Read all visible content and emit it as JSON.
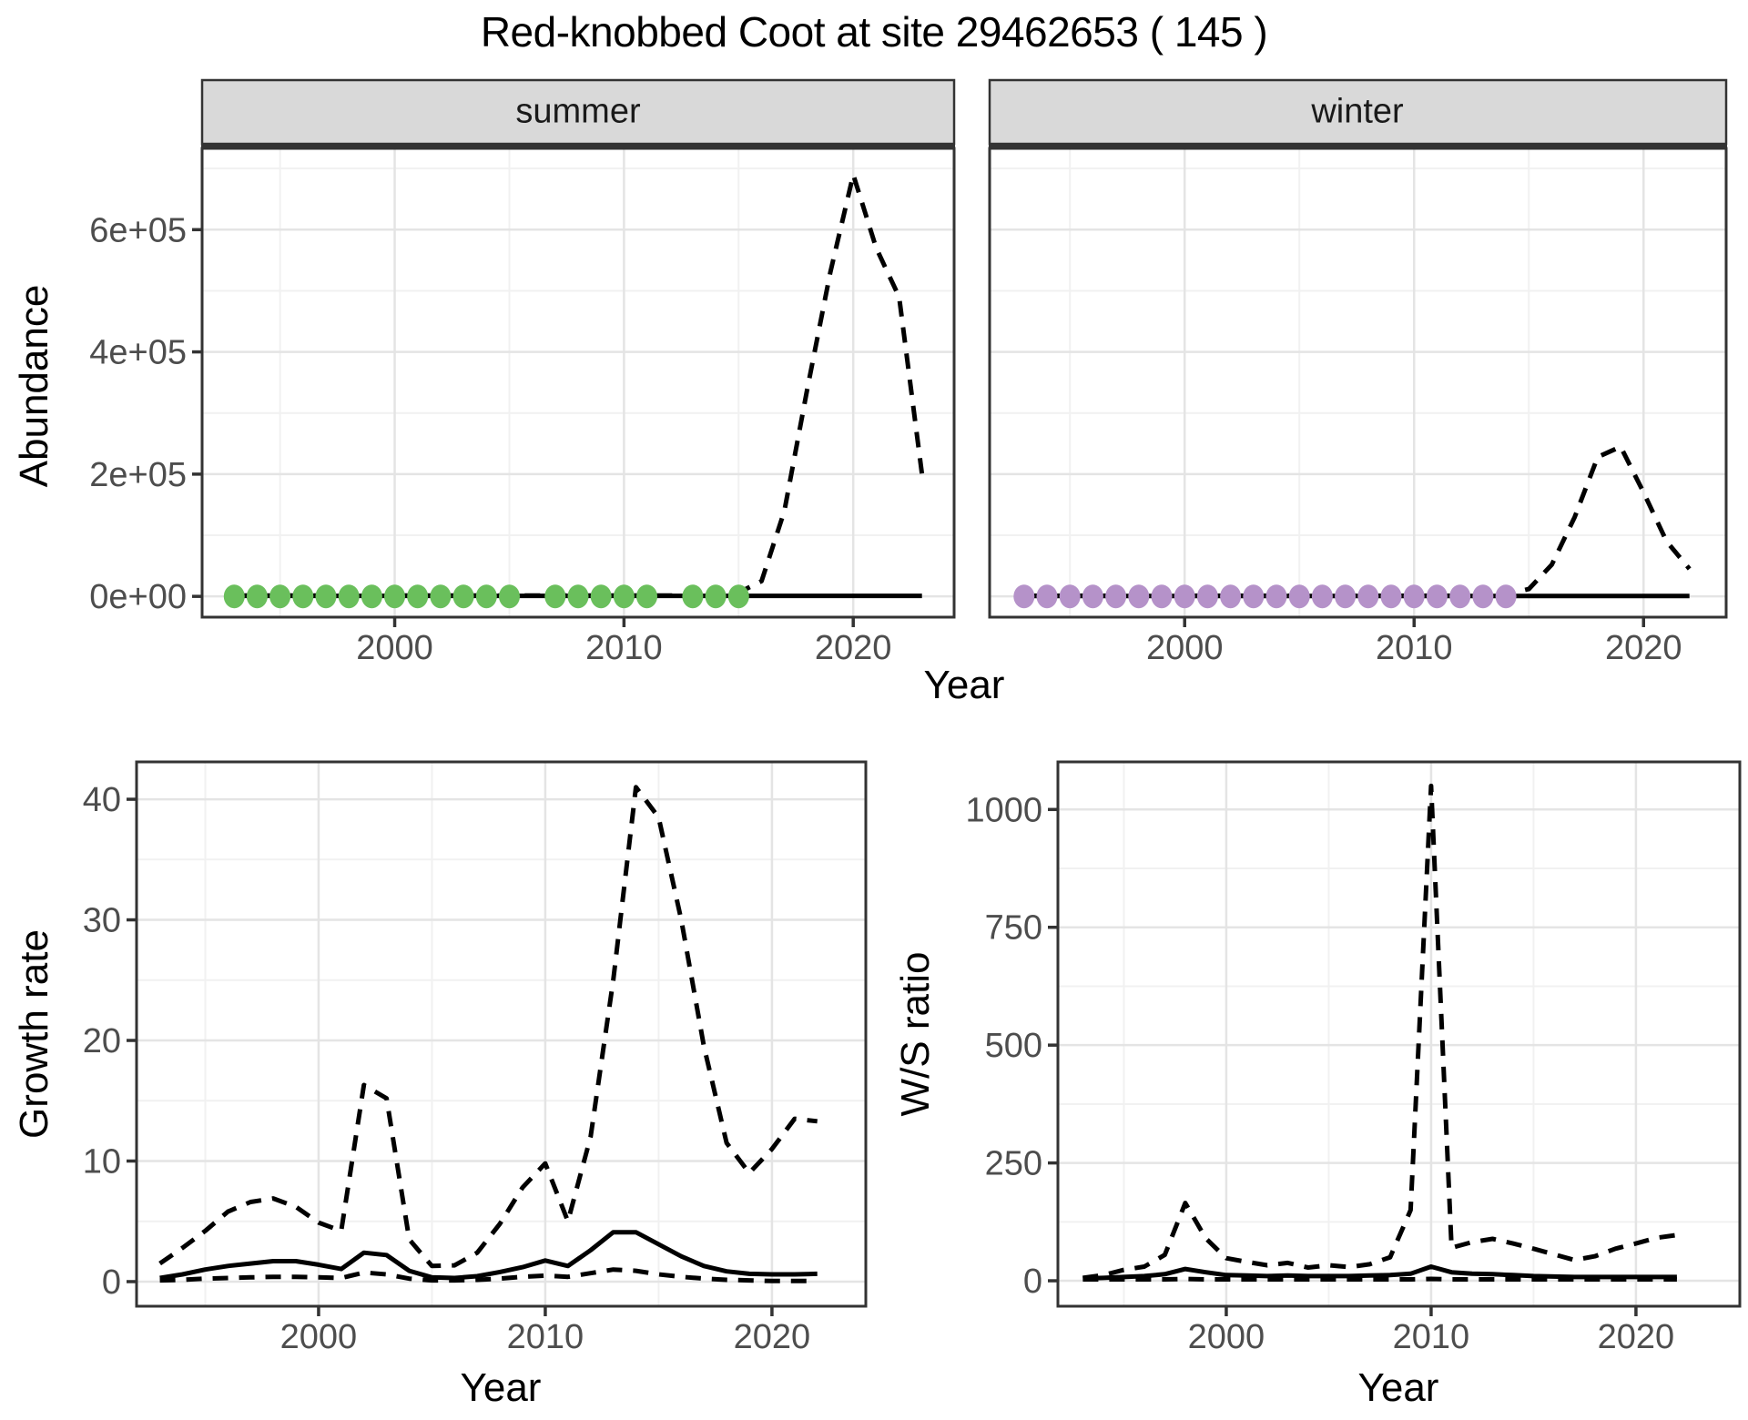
{
  "title": "Red-knobbed Coot at site 29462653 ( 145 )",
  "axes": {
    "abundance": "Abundance",
    "growth_rate": "Growth rate",
    "ws_ratio": "W/S ratio",
    "year": "Year"
  },
  "colors": {
    "summer_points": "#6abf5c",
    "winter_points": "#b592c9",
    "line": "#000000",
    "strip_bg": "#d9d9d9",
    "strip_border": "#333333",
    "panel_border": "#333333",
    "grid_major": "#e4e4e4",
    "grid_minor": "#f1f1f1",
    "tick_label": "#4d4d4d",
    "tick_mark": "#333333"
  },
  "chart_data": [
    {
      "id": "abundance_summer",
      "type": "line",
      "facet_label": "summer",
      "xlabel": "Year",
      "ylabel": "Abundance",
      "xlim": [
        1991.6,
        2024.4
      ],
      "ylim": [
        -34000,
        733000
      ],
      "x_ticks": [
        {
          "value": 2000,
          "label": "2000"
        },
        {
          "value": 2010,
          "label": "2010"
        },
        {
          "value": 2020,
          "label": "2020"
        }
      ],
      "x_minor": [
        1995,
        2005,
        2015
      ],
      "y_ticks": [
        {
          "value": 0,
          "label": "0e+00"
        },
        {
          "value": 200000,
          "label": "2e+05"
        },
        {
          "value": 400000,
          "label": "4e+05"
        },
        {
          "value": 600000,
          "label": "6e+05"
        }
      ],
      "y_minor": [
        100000,
        300000,
        500000,
        700000
      ],
      "series": [
        {
          "name": "upper_ci",
          "style": "dashed",
          "x": [
            1993,
            1994,
            1995,
            1996,
            1997,
            1998,
            1999,
            2000,
            2001,
            2002,
            2003,
            2004,
            2005,
            2006,
            2007,
            2008,
            2009,
            2010,
            2011,
            2012,
            2013,
            2014,
            2015,
            2016,
            2017,
            2018,
            2019,
            2020,
            2021,
            2022,
            2023
          ],
          "y": [
            1500,
            1500,
            1500,
            1500,
            1500,
            1500,
            1500,
            1500,
            1500,
            1500,
            1500,
            1500,
            1500,
            1500,
            1500,
            1500,
            1500,
            1500,
            1500,
            1500,
            1500,
            1500,
            6000,
            25000,
            140000,
            340000,
            530000,
            690000,
            570000,
            490000,
            200000
          ]
        },
        {
          "name": "median",
          "style": "solid",
          "x": [
            1993,
            1994,
            1995,
            1996,
            1997,
            1998,
            1999,
            2000,
            2001,
            2002,
            2003,
            2004,
            2005,
            2006,
            2007,
            2008,
            2009,
            2010,
            2011,
            2012,
            2013,
            2014,
            2015,
            2016,
            2017,
            2018,
            2019,
            2020,
            2021,
            2022,
            2023
          ],
          "y": [
            800,
            800,
            800,
            800,
            800,
            800,
            800,
            800,
            800,
            800,
            800,
            800,
            800,
            800,
            800,
            800,
            800,
            800,
            800,
            800,
            800,
            800,
            800,
            800,
            800,
            800,
            800,
            800,
            800,
            800,
            800
          ]
        }
      ],
      "points": {
        "name": "observed-summer",
        "color": "#6abf5c",
        "x": [
          1993,
          1994,
          1995,
          1996,
          1997,
          1998,
          1999,
          2000,
          2001,
          2002,
          2003,
          2004,
          2005,
          2007,
          2008,
          2009,
          2010,
          2011,
          2013,
          2014,
          2015
        ],
        "y": [
          0,
          0,
          0,
          0,
          0,
          0,
          0,
          0,
          0,
          0,
          0,
          0,
          0,
          0,
          0,
          0,
          0,
          0,
          0,
          0,
          0
        ]
      }
    },
    {
      "id": "abundance_winter",
      "type": "line",
      "facet_label": "winter",
      "xlabel": "Year",
      "ylabel": "Abundance",
      "xlim": [
        1991.5,
        2023.6
      ],
      "ylim": [
        -34000,
        733000
      ],
      "x_ticks": [
        {
          "value": 2000,
          "label": "2000"
        },
        {
          "value": 2010,
          "label": "2010"
        },
        {
          "value": 2020,
          "label": "2020"
        }
      ],
      "x_minor": [
        1995,
        2005,
        2015
      ],
      "y_ticks": [],
      "y_minor": [
        100000,
        300000,
        500000,
        700000
      ],
      "y_grid_major": [
        0,
        200000,
        400000,
        600000
      ],
      "series": [
        {
          "name": "upper_ci",
          "style": "dashed",
          "x": [
            1993,
            1994,
            1995,
            1996,
            1997,
            1998,
            1999,
            2000,
            2001,
            2002,
            2003,
            2004,
            2005,
            2006,
            2007,
            2008,
            2009,
            2010,
            2011,
            2012,
            2013,
            2014,
            2015,
            2016,
            2017,
            2018,
            2019,
            2020,
            2021,
            2022
          ],
          "y": [
            1000,
            1000,
            1000,
            1000,
            1000,
            1000,
            1000,
            1000,
            1000,
            1000,
            1000,
            1000,
            1000,
            1000,
            1000,
            1000,
            1000,
            1000,
            1000,
            1000,
            1000,
            3000,
            12000,
            52000,
            130000,
            228000,
            245000,
            170000,
            90000,
            45000
          ]
        },
        {
          "name": "median",
          "style": "solid",
          "x": [
            1993,
            1994,
            1995,
            1996,
            1997,
            1998,
            1999,
            2000,
            2001,
            2002,
            2003,
            2004,
            2005,
            2006,
            2007,
            2008,
            2009,
            2010,
            2011,
            2012,
            2013,
            2014,
            2015,
            2016,
            2017,
            2018,
            2019,
            2020,
            2021,
            2022
          ],
          "y": [
            500,
            500,
            500,
            500,
            500,
            500,
            500,
            500,
            500,
            500,
            500,
            500,
            500,
            500,
            500,
            500,
            500,
            500,
            500,
            500,
            500,
            500,
            500,
            500,
            500,
            500,
            500,
            500,
            500,
            500
          ]
        }
      ],
      "points": {
        "name": "observed-winter",
        "color": "#b592c9",
        "x": [
          1993,
          1994,
          1995,
          1996,
          1997,
          1998,
          1999,
          2000,
          2001,
          2002,
          2003,
          2004,
          2005,
          2006,
          2007,
          2008,
          2009,
          2010,
          2011,
          2012,
          2013,
          2014
        ],
        "y": [
          0,
          0,
          0,
          0,
          0,
          0,
          0,
          0,
          0,
          0,
          0,
          0,
          0,
          0,
          0,
          0,
          0,
          0,
          0,
          0,
          0,
          0
        ]
      }
    },
    {
      "id": "growth_rate",
      "type": "line",
      "xlabel": "Year",
      "ylabel": "Growth rate",
      "xlim": [
        1991.97,
        2024.14
      ],
      "ylim": [
        -2.04,
        43.1
      ],
      "x_ticks": [
        {
          "value": 2000,
          "label": "2000"
        },
        {
          "value": 2010,
          "label": "2010"
        },
        {
          "value": 2020,
          "label": "2020"
        }
      ],
      "x_minor": [
        1995,
        2005,
        2015
      ],
      "y_ticks": [
        {
          "value": 0,
          "label": "0"
        },
        {
          "value": 10,
          "label": "10"
        },
        {
          "value": 20,
          "label": "20"
        },
        {
          "value": 30,
          "label": "30"
        },
        {
          "value": 40,
          "label": "40"
        }
      ],
      "y_minor": [
        5,
        15,
        25,
        35
      ],
      "series": [
        {
          "name": "upper_ci",
          "style": "dashed",
          "x": [
            1993,
            1994,
            1995,
            1996,
            1997,
            1998,
            1999,
            2000,
            2001,
            2002,
            2003,
            2004,
            2005,
            2006,
            2007,
            2008,
            2009,
            2010,
            2011,
            2012,
            2013,
            2014,
            2015,
            2016,
            2017,
            2018,
            2019,
            2020,
            2021,
            2022
          ],
          "y": [
            1.5,
            2.8,
            4.2,
            5.8,
            6.6,
            6.9,
            6.2,
            4.9,
            4.2,
            16.3,
            15.2,
            3.5,
            1.3,
            1.35,
            2.4,
            4.8,
            7.8,
            9.8,
            5.0,
            12.0,
            25.0,
            41.0,
            38.5,
            30.0,
            19.5,
            11.5,
            9.0,
            11.0,
            13.5,
            13.3
          ]
        },
        {
          "name": "median",
          "style": "solid",
          "x": [
            1993,
            1994,
            1995,
            1996,
            1997,
            1998,
            1999,
            2000,
            2001,
            2002,
            2003,
            2004,
            2005,
            2006,
            2007,
            2008,
            2009,
            2010,
            2011,
            2012,
            2013,
            2014,
            2015,
            2016,
            2017,
            2018,
            2019,
            2020,
            2021,
            2022
          ],
          "y": [
            0.3,
            0.6,
            1.0,
            1.3,
            1.5,
            1.7,
            1.7,
            1.4,
            1.05,
            2.4,
            2.2,
            0.9,
            0.35,
            0.3,
            0.45,
            0.8,
            1.2,
            1.75,
            1.3,
            2.6,
            4.1,
            4.1,
            3.1,
            2.1,
            1.3,
            0.85,
            0.65,
            0.6,
            0.6,
            0.65
          ]
        },
        {
          "name": "lower_ci",
          "style": "dashed",
          "x": [
            1993,
            1994,
            1995,
            1996,
            1997,
            1998,
            1999,
            2000,
            2001,
            2002,
            2003,
            2004,
            2005,
            2006,
            2007,
            2008,
            2009,
            2010,
            2011,
            2012,
            2013,
            2014,
            2015,
            2016,
            2017,
            2018,
            2019,
            2020,
            2021,
            2022
          ],
          "y": [
            0.1,
            0.15,
            0.25,
            0.3,
            0.35,
            0.4,
            0.4,
            0.35,
            0.3,
            0.75,
            0.6,
            0.25,
            0.1,
            0.1,
            0.15,
            0.25,
            0.4,
            0.5,
            0.4,
            0.7,
            1.0,
            0.9,
            0.6,
            0.4,
            0.25,
            0.15,
            0.1,
            0.05,
            0.05,
            0.05
          ]
        }
      ]
    },
    {
      "id": "ws_ratio",
      "type": "line",
      "xlabel": "Year",
      "ylabel": "W/S ratio",
      "xlim": [
        1991.78,
        2025.07
      ],
      "ylim": [
        -54,
        1101
      ],
      "x_ticks": [
        {
          "value": 2000,
          "label": "2000"
        },
        {
          "value": 2010,
          "label": "2010"
        },
        {
          "value": 2020,
          "label": "2020"
        }
      ],
      "x_minor": [
        1995,
        2005,
        2015
      ],
      "y_ticks": [
        {
          "value": 0,
          "label": "0"
        },
        {
          "value": 250,
          "label": "250"
        },
        {
          "value": 500,
          "label": "500"
        },
        {
          "value": 750,
          "label": "750"
        },
        {
          "value": 1000,
          "label": "1000"
        }
      ],
      "y_minor": [
        125,
        375,
        625,
        875
      ],
      "series": [
        {
          "name": "upper_ci",
          "style": "dashed",
          "x": [
            1993,
            1994,
            1995,
            1996,
            1997,
            1998,
            1999,
            2000,
            2001,
            2002,
            2003,
            2004,
            2005,
            2006,
            2007,
            2008,
            2009,
            2010,
            2011,
            2012,
            2013,
            2014,
            2015,
            2016,
            2017,
            2018,
            2019,
            2020,
            2021,
            2022
          ],
          "y": [
            6,
            12,
            23,
            30,
            55,
            165,
            90,
            48,
            40,
            33,
            38,
            28,
            33,
            29,
            35,
            50,
            150,
            1050,
            70,
            82,
            89,
            79,
            68,
            56,
            44,
            52,
            68,
            79,
            91,
            97
          ]
        },
        {
          "name": "median",
          "style": "solid",
          "x": [
            1993,
            1994,
            1995,
            1996,
            1997,
            1998,
            1999,
            2000,
            2001,
            2002,
            2003,
            2004,
            2005,
            2006,
            2007,
            2008,
            2009,
            2010,
            2011,
            2012,
            2013,
            2014,
            2015,
            2016,
            2017,
            2018,
            2019,
            2020,
            2021,
            2022
          ],
          "y": [
            5,
            6,
            8,
            10,
            14,
            25,
            18,
            12,
            11,
            10,
            11,
            10,
            10,
            10,
            11,
            12,
            15,
            30,
            18,
            15,
            14,
            12,
            10,
            9,
            8,
            8,
            8,
            8,
            8,
            8
          ]
        },
        {
          "name": "lower_ci",
          "style": "dashed",
          "x": [
            1993,
            1994,
            1995,
            1996,
            1997,
            1998,
            1999,
            2000,
            2001,
            2002,
            2003,
            2004,
            2005,
            2006,
            2007,
            2008,
            2009,
            2010,
            2011,
            2012,
            2013,
            2014,
            2015,
            2016,
            2017,
            2018,
            2019,
            2020,
            2021,
            2022
          ],
          "y": [
            3,
            3,
            3,
            3,
            3,
            4,
            3,
            3,
            3,
            3,
            3,
            3,
            3,
            3,
            3,
            3,
            3,
            4,
            3,
            3,
            3,
            3,
            3,
            3,
            3,
            3,
            3,
            3,
            3,
            3
          ]
        }
      ]
    }
  ]
}
